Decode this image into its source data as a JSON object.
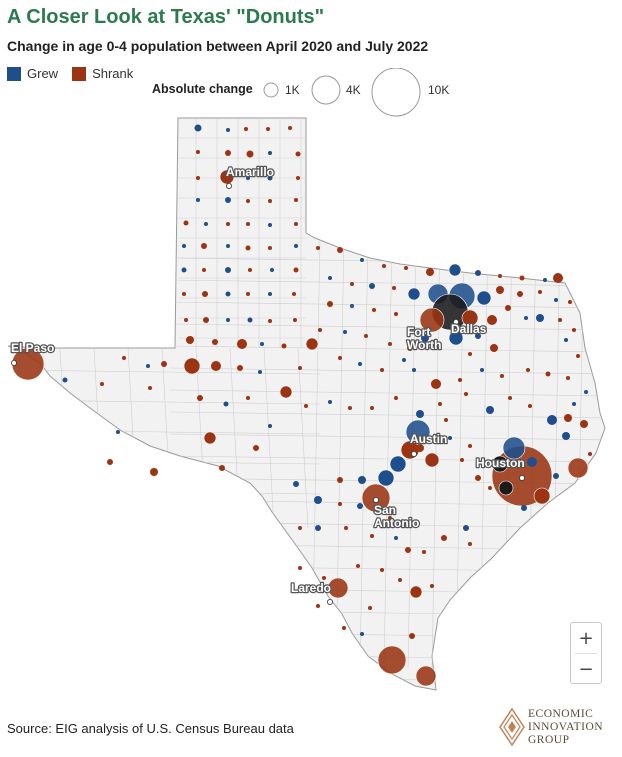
{
  "header": {
    "title": "A Closer Look at Texas' \"Donuts\"",
    "subtitle": "Change in age 0-4 population between April 2020 and July 2022"
  },
  "legend": {
    "colors": [
      {
        "label": "Grew",
        "color": "#1f4e8c"
      },
      {
        "label": "Shrank",
        "color": "#9a3412"
      }
    ],
    "size_title": "Absolute change",
    "sizes": [
      {
        "label": "1K",
        "value": 1000
      },
      {
        "label": "4K",
        "value": 4000
      },
      {
        "label": "10K",
        "value": 10000
      }
    ]
  },
  "map": {
    "region": "Texas counties",
    "colors": {
      "grew": "#1f4e8c",
      "shrank": "#9a3412",
      "metro": "#1a1a1a",
      "land": "#f2f2f2",
      "border": "#c9c9c9"
    },
    "cities": [
      {
        "name": "Amarillo",
        "lines": [
          "Amarillo"
        ]
      },
      {
        "name": "El Paso",
        "lines": [
          "El Paso"
        ]
      },
      {
        "name": "Fort Worth",
        "lines": [
          "Fort",
          "Worth"
        ]
      },
      {
        "name": "Dallas",
        "lines": [
          "Dallas"
        ]
      },
      {
        "name": "Austin",
        "lines": [
          "Austin"
        ]
      },
      {
        "name": "Houston",
        "lines": [
          "Houston"
        ]
      },
      {
        "name": "San Antonio",
        "lines": [
          "San",
          "Antonio"
        ]
      },
      {
        "name": "Laredo",
        "lines": [
          "Laredo"
        ]
      }
    ]
  },
  "controls": {
    "zoom_in": "+",
    "zoom_out": "−"
  },
  "footer": {
    "source": "Source: EIG analysis of U.S. Census Bureau data",
    "logo_lines": [
      "ECONOMIC",
      "INNOVATION",
      "GROUP"
    ]
  }
}
